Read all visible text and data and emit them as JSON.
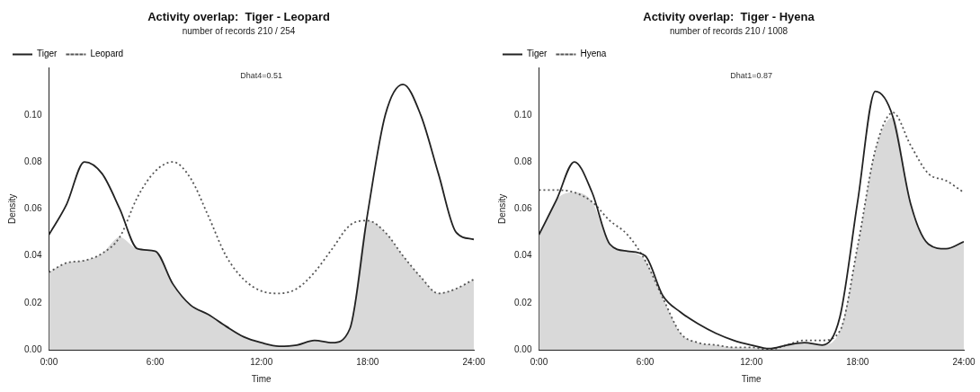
{
  "chart_data": [
    {
      "type": "line",
      "title": "Activity overlap:  Tiger - Leopard",
      "subtitle": "number of records 210 / 254",
      "xlabel": "Time",
      "ylabel": "Density",
      "annotations": [
        "Dhat4=0.51"
      ],
      "xlim": [
        0,
        24
      ],
      "xticks": [
        {
          "value": 0,
          "label": "0:00"
        },
        {
          "value": 6,
          "label": "6:00"
        },
        {
          "value": 12,
          "label": "12:00"
        },
        {
          "value": 18,
          "label": "18:00"
        },
        {
          "value": 24,
          "label": "24:00"
        }
      ],
      "ylim": [
        0,
        0.12
      ],
      "yticks": [
        {
          "value": 0,
          "label": "0.00"
        },
        {
          "value": 0.02,
          "label": "0.02"
        },
        {
          "value": 0.04,
          "label": "0.04"
        },
        {
          "value": 0.06,
          "label": "0.06"
        },
        {
          "value": 0.08,
          "label": "0.08"
        },
        {
          "value": 0.1,
          "label": "0.10"
        }
      ],
      "grid": false,
      "legend": "top left",
      "marker": "none",
      "x": [
        0,
        1,
        2,
        3,
        4,
        5,
        6,
        7,
        8,
        9,
        10,
        11,
        12,
        13,
        14,
        15,
        16,
        17,
        18,
        19,
        20,
        21,
        22,
        23,
        24
      ],
      "series": [
        {
          "type": "area",
          "color": "#d9d9d9",
          "values": [
            0.033,
            0.037,
            0.038,
            0.041,
            0.048,
            0.043,
            0.042,
            0.028,
            0.019,
            0.015,
            0.01,
            0.0055,
            0.003,
            0.0015,
            0.002,
            0.004,
            0.003,
            0.009,
            0.055,
            0.05,
            0.04,
            0.031,
            0.024,
            0.026,
            0.03
          ]
        },
        {
          "name": "Tiger",
          "color": "#222222",
          "line_style": "solid",
          "values": [
            0.049,
            0.062,
            0.08,
            0.075,
            0.06,
            0.043,
            0.042,
            0.028,
            0.019,
            0.015,
            0.01,
            0.0055,
            0.003,
            0.0015,
            0.002,
            0.004,
            0.003,
            0.009,
            0.058,
            0.1,
            0.113,
            0.1,
            0.075,
            0.05,
            0.047
          ]
        },
        {
          "name": "Leopard",
          "color": "#555555",
          "line_style": "dotted",
          "values": [
            0.033,
            0.037,
            0.038,
            0.041,
            0.048,
            0.065,
            0.076,
            0.08,
            0.073,
            0.057,
            0.04,
            0.03,
            0.025,
            0.024,
            0.026,
            0.033,
            0.043,
            0.053,
            0.055,
            0.05,
            0.04,
            0.031,
            0.024,
            0.026,
            0.03
          ]
        }
      ]
    },
    {
      "type": "line",
      "title": "Activity overlap:  Tiger - Hyena",
      "subtitle": "number of records 210 / 1008",
      "xlabel": "Time",
      "ylabel": "Density",
      "annotations": [
        "Dhat1=0.87"
      ],
      "xlim": [
        0,
        24
      ],
      "xticks": [
        {
          "value": 0,
          "label": "0:00"
        },
        {
          "value": 6,
          "label": "6:00"
        },
        {
          "value": 12,
          "label": "12:00"
        },
        {
          "value": 18,
          "label": "18:00"
        },
        {
          "value": 24,
          "label": "24:00"
        }
      ],
      "ylim": [
        0,
        0.12
      ],
      "yticks": [
        {
          "value": 0,
          "label": "0.00"
        },
        {
          "value": 0.02,
          "label": "0.02"
        },
        {
          "value": 0.04,
          "label": "0.04"
        },
        {
          "value": 0.06,
          "label": "0.06"
        },
        {
          "value": 0.08,
          "label": "0.08"
        },
        {
          "value": 0.1,
          "label": "0.10"
        }
      ],
      "grid": false,
      "legend": "top left",
      "marker": "none",
      "x": [
        0,
        1,
        2,
        3,
        4,
        5,
        6,
        7,
        8,
        9,
        10,
        11,
        12,
        13,
        14,
        15,
        16,
        17,
        18,
        19,
        20,
        21,
        22,
        23,
        24
      ],
      "series": [
        {
          "type": "area",
          "color": "#d9d9d9",
          "values": [
            0.049,
            0.064,
            0.067,
            0.063,
            0.045,
            0.042,
            0.038,
            0.022,
            0.007,
            0.003,
            0.002,
            0.001,
            0.001,
            0,
            0.002,
            0.003,
            0.002,
            0.008,
            0.044,
            0.085,
            0.099,
            0.062,
            0.045,
            0.043,
            0.046
          ]
        },
        {
          "name": "Tiger",
          "color": "#222222",
          "line_style": "solid",
          "values": [
            0.049,
            0.064,
            0.08,
            0.067,
            0.045,
            0.042,
            0.04,
            0.023,
            0.016,
            0.011,
            0.007,
            0.004,
            0.002,
            0.0005,
            0.002,
            0.003,
            0.002,
            0.014,
            0.063,
            0.11,
            0.099,
            0.062,
            0.045,
            0.043,
            0.046
          ]
        },
        {
          "name": "Hyena",
          "color": "#555555",
          "line_style": "dotted",
          "values": [
            0.068,
            0.068,
            0.067,
            0.063,
            0.055,
            0.049,
            0.038,
            0.022,
            0.007,
            0.003,
            0.002,
            0.001,
            0.001,
            0,
            0.002,
            0.004,
            0.004,
            0.008,
            0.044,
            0.085,
            0.101,
            0.087,
            0.075,
            0.072,
            0.067
          ]
        }
      ]
    }
  ]
}
